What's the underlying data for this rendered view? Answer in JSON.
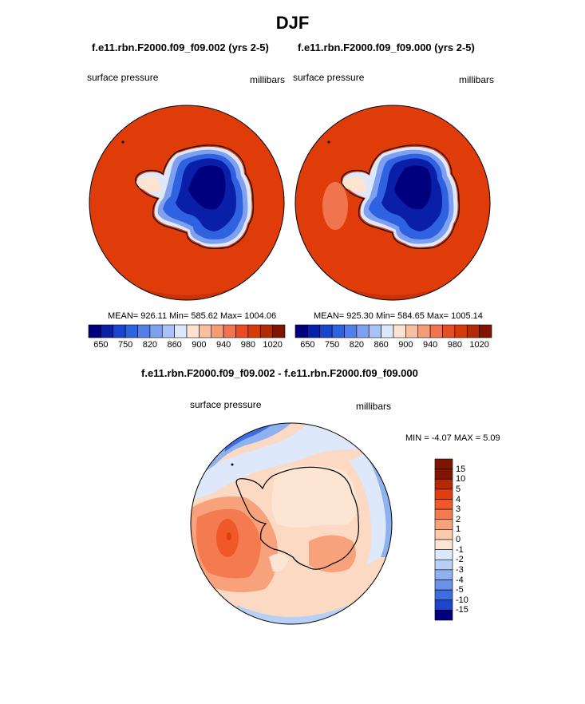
{
  "page": {
    "title": "DJF"
  },
  "panels": [
    {
      "id": "left",
      "title": "f.e11.rbn.F2000.f09_f09.002 (yrs 2-5)",
      "variable": "surface pressure",
      "units": "millibars",
      "stats_text": "MEAN= 926.11  Min= 585.62  Max= 1004.06",
      "colorbar_labels": [
        "650",
        "750",
        "820",
        "860",
        "900",
        "940",
        "980",
        "1020"
      ]
    },
    {
      "id": "right",
      "title": "f.e11.rbn.F2000.f09_f09.000 (yrs 2-5)",
      "variable": "surface pressure",
      "units": "millibars",
      "stats_text": "MEAN= 925.30  Min= 584.65  Max= 1005.14",
      "colorbar_labels": [
        "650",
        "750",
        "820",
        "860",
        "900",
        "940",
        "980",
        "1020"
      ]
    }
  ],
  "diff": {
    "title": "f.e11.rbn.F2000.f09_f09.002 - f.e11.rbn.F2000.f09_f09.000",
    "variable": "surface pressure",
    "units": "millibars",
    "minmax_text": "MIN =  -4.07 MAX =   5.09",
    "colorbar_labels": [
      "15",
      "10",
      "5",
      "4",
      "3",
      "2",
      "1",
      "0",
      "-1",
      "-2",
      "-3",
      "-4",
      "-5",
      "-10",
      "-15"
    ]
  },
  "colors": {
    "full_field_scale": [
      "#00007f",
      "#0a1fa8",
      "#1a46cc",
      "#2e62e0",
      "#557fe8",
      "#7f9fef",
      "#aac2f5",
      "#dde9fb",
      "#fde3d0",
      "#f8c0a0",
      "#f59b78",
      "#f0744e",
      "#e84c22",
      "#d63a0a",
      "#b32a05",
      "#7f1400"
    ],
    "diff_scale": [
      "#7f1400",
      "#b32a05",
      "#e03e0f",
      "#f0582a",
      "#f47b50",
      "#f8a27c",
      "#fbc9ab",
      "#fde5d4",
      "#dde9fb",
      "#b8cff6",
      "#8eb1ef",
      "#6a92e8",
      "#3e6de0",
      "#1d45c8",
      "#00007f"
    ],
    "ocean_full": "#e03c0a",
    "ocean_diff": "#fbd9c3"
  },
  "chart_data": [
    {
      "type": "heatmap",
      "name": "surface pressure (left map)",
      "title": "f.e11.rbn.F2000.f09_f09.002 (yrs 2-5)",
      "units": "millibars",
      "mean": 926.11,
      "min": 585.62,
      "max": 1004.06,
      "levels": [
        650,
        750,
        820,
        860,
        900,
        940,
        980,
        1020
      ],
      "projection": "south polar stereographic"
    },
    {
      "type": "heatmap",
      "name": "surface pressure (right map)",
      "title": "f.e11.rbn.F2000.f09_f09.000 (yrs 2-5)",
      "units": "millibars",
      "mean": 925.3,
      "min": 584.65,
      "max": 1005.14,
      "levels": [
        650,
        750,
        820,
        860,
        900,
        940,
        980,
        1020
      ],
      "projection": "south polar stereographic"
    },
    {
      "type": "heatmap",
      "name": "surface pressure difference",
      "title": "f.e11.rbn.F2000.f09_f09.002 - f.e11.rbn.F2000.f09_f09.000",
      "units": "millibars",
      "min": -4.07,
      "max": 5.09,
      "levels": [
        -15,
        -10,
        -5,
        -4,
        -3,
        -2,
        -1,
        0,
        1,
        2,
        3,
        4,
        5,
        10,
        15
      ],
      "projection": "south polar stereographic"
    }
  ]
}
